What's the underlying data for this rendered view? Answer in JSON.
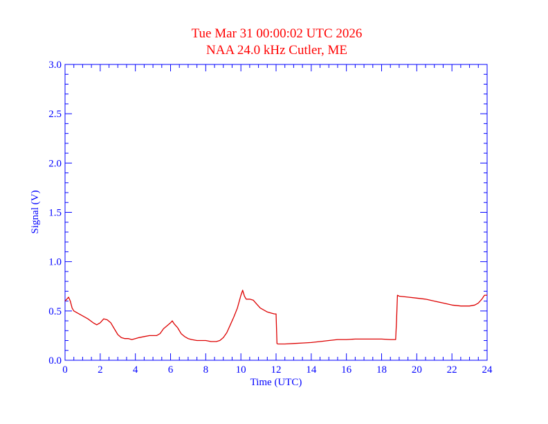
{
  "chart_data": {
    "type": "line",
    "title": "Tue Mar 31 00:00:02 UTC 2026",
    "subtitle": "NAA 24.0 kHz Cutler, ME",
    "xlabel": "Time (UTC)",
    "ylabel": "Signal (V)",
    "xlim": [
      0,
      24
    ],
    "ylim": [
      0,
      3
    ],
    "xticks": [
      0,
      2,
      4,
      6,
      8,
      10,
      12,
      14,
      16,
      18,
      20,
      22,
      24
    ],
    "xtick_labels": [
      "0",
      "2",
      "4",
      "6",
      "8",
      "10",
      "12",
      "14",
      "16",
      "18",
      "20",
      "22",
      "24"
    ],
    "yticks": [
      0,
      0.5,
      1,
      1.5,
      2,
      2.5,
      3
    ],
    "ytick_labels": [
      "0.0",
      "0.5",
      "1.0",
      "1.5",
      "2.0",
      "2.5",
      "3.0"
    ],
    "grid": false,
    "colors": {
      "axis": "#0000ff",
      "title": "#ff0000",
      "line": "#dd0000"
    },
    "series": [
      {
        "x": [
          0,
          0.1,
          0.2,
          0.3,
          0.4,
          0.5,
          0.7,
          1.0,
          1.3,
          1.6,
          1.8,
          2.0,
          2.2,
          2.4,
          2.6,
          2.8,
          3.0,
          3.2,
          3.4,
          3.6,
          3.8,
          4.0,
          4.2,
          4.5,
          4.8,
          5.0,
          5.2,
          5.4,
          5.6,
          5.8,
          6.0,
          6.1,
          6.2,
          6.4,
          6.6,
          6.8,
          7.0,
          7.2,
          7.5,
          7.8,
          8.0,
          8.3,
          8.6,
          8.8,
          9.0,
          9.2,
          9.4,
          9.6,
          9.8,
          10.0,
          10.1,
          10.2,
          10.3,
          10.5,
          10.7,
          10.9,
          11.1,
          11.3,
          11.5,
          11.7,
          11.9,
          12.0,
          12.05,
          12.1,
          12.5,
          13.0,
          13.5,
          14.0,
          14.5,
          15.0,
          15.5,
          16.0,
          16.5,
          17.0,
          17.5,
          18.0,
          18.5,
          18.8,
          18.85,
          18.9,
          19.0,
          19.5,
          20.0,
          20.5,
          21.0,
          21.5,
          22.0,
          22.5,
          23.0,
          23.3,
          23.5,
          23.7,
          23.85,
          24.0
        ],
        "y": [
          0.6,
          0.62,
          0.64,
          0.6,
          0.53,
          0.5,
          0.48,
          0.45,
          0.42,
          0.38,
          0.36,
          0.38,
          0.42,
          0.41,
          0.38,
          0.32,
          0.26,
          0.23,
          0.22,
          0.22,
          0.21,
          0.22,
          0.23,
          0.24,
          0.25,
          0.25,
          0.25,
          0.27,
          0.32,
          0.35,
          0.38,
          0.4,
          0.37,
          0.33,
          0.27,
          0.24,
          0.22,
          0.21,
          0.2,
          0.2,
          0.2,
          0.19,
          0.19,
          0.2,
          0.23,
          0.28,
          0.36,
          0.44,
          0.53,
          0.66,
          0.71,
          0.65,
          0.62,
          0.62,
          0.61,
          0.57,
          0.53,
          0.51,
          0.49,
          0.48,
          0.47,
          0.47,
          0.17,
          0.165,
          0.165,
          0.17,
          0.175,
          0.18,
          0.19,
          0.2,
          0.21,
          0.21,
          0.215,
          0.215,
          0.215,
          0.215,
          0.21,
          0.21,
          0.4,
          0.66,
          0.65,
          0.64,
          0.63,
          0.62,
          0.6,
          0.58,
          0.56,
          0.55,
          0.55,
          0.56,
          0.58,
          0.62,
          0.66,
          0.66
        ]
      }
    ]
  }
}
